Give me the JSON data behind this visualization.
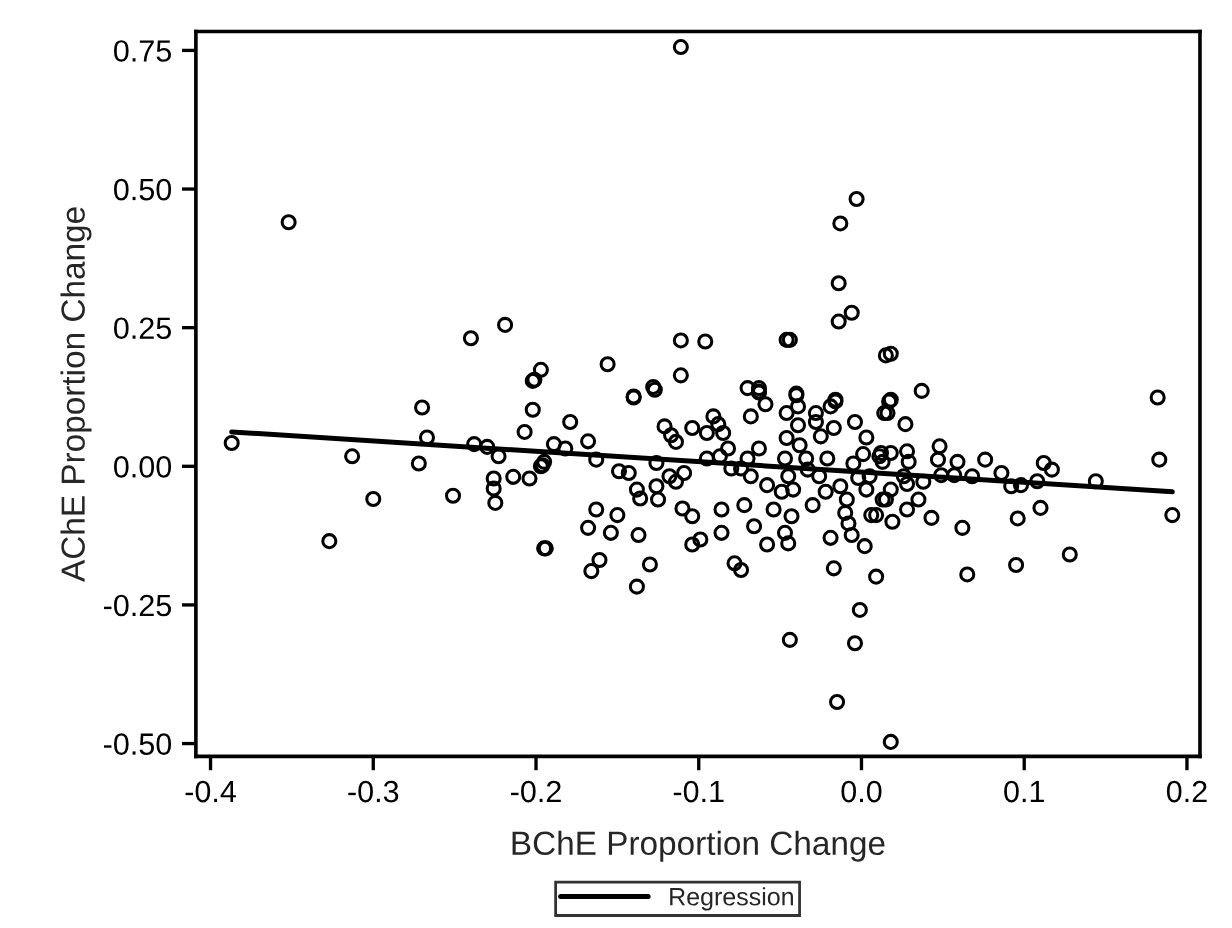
{
  "chart_data": {
    "type": "scatter",
    "xlabel": "BChE Proportion Change",
    "ylabel": "AChE Proportion Change",
    "xlim": [
      -0.409,
      0.208
    ],
    "ylim": [
      -0.523,
      0.784
    ],
    "xticks": [
      {
        "value": -0.4,
        "label": "-0.4"
      },
      {
        "value": -0.3,
        "label": "-0.3"
      },
      {
        "value": -0.2,
        "label": "-0.2"
      },
      {
        "value": -0.1,
        "label": "-0.1"
      },
      {
        "value": 0.0,
        "label": "0.0"
      },
      {
        "value": 0.1,
        "label": "0.1"
      },
      {
        "value": 0.2,
        "label": "0.2"
      }
    ],
    "yticks": [
      {
        "value": -0.5,
        "label": "-0.50"
      },
      {
        "value": -0.25,
        "label": "-0.25"
      },
      {
        "value": 0.0,
        "label": "0.00"
      },
      {
        "value": 0.25,
        "label": "0.25"
      },
      {
        "value": 0.5,
        "label": "0.50"
      },
      {
        "value": 0.75,
        "label": "0.75"
      }
    ],
    "grid": false,
    "legend": "bottom",
    "marker": "circle",
    "series": [
      {
        "color": "#000000",
        "x": [
          -0.352,
          -0.24,
          -0.219,
          -0.202,
          -0.197,
          -0.111,
          -0.003,
          -0.013,
          -0.014,
          -0.014,
          -0.006,
          -0.111,
          -0.096,
          -0.046,
          -0.044,
          -0.156,
          -0.201,
          -0.111,
          -0.128,
          -0.14,
          -0.07,
          -0.063,
          -0.063,
          -0.04,
          -0.016,
          0.015,
          0.018,
          0.037,
          0.018,
          0.182,
          -0.387,
          -0.27,
          -0.202,
          -0.207,
          -0.267,
          -0.238,
          -0.23,
          -0.223,
          -0.313,
          -0.272,
          -0.226,
          -0.214,
          -0.204,
          -0.226,
          -0.225,
          -0.3,
          -0.251,
          -0.327,
          -0.195,
          -0.196,
          -0.14,
          -0.127,
          -0.179,
          -0.189,
          -0.182,
          -0.195,
          -0.197,
          -0.168,
          -0.163,
          -0.149,
          -0.143,
          -0.126,
          -0.121,
          -0.117,
          -0.114,
          -0.104,
          -0.118,
          -0.114,
          -0.109,
          -0.126,
          -0.125,
          -0.138,
          -0.136,
          -0.163,
          -0.15,
          -0.168,
          -0.154,
          -0.137,
          -0.194,
          -0.161,
          -0.166,
          -0.13,
          -0.138,
          -0.11,
          -0.104,
          -0.104,
          -0.099,
          -0.095,
          -0.091,
          -0.088,
          -0.085,
          -0.095,
          -0.087,
          -0.082,
          -0.08,
          -0.074,
          -0.07,
          -0.068,
          -0.063,
          -0.068,
          -0.063,
          -0.059,
          -0.086,
          -0.086,
          -0.072,
          -0.066,
          -0.078,
          -0.074,
          -0.058,
          -0.054,
          -0.058,
          -0.047,
          -0.045,
          -0.043,
          -0.042,
          -0.045,
          -0.047,
          -0.046,
          -0.046,
          -0.04,
          -0.039,
          -0.039,
          -0.038,
          -0.034,
          -0.033,
          -0.028,
          -0.028,
          -0.025,
          -0.021,
          -0.019,
          -0.016,
          -0.026,
          -0.022,
          -0.03,
          -0.044,
          -0.017,
          -0.013,
          -0.009,
          -0.01,
          -0.008,
          -0.019,
          -0.006,
          0.002,
          -0.017,
          0.009,
          -0.001,
          -0.004,
          -0.015,
          -0.004,
          0.003,
          0.001,
          -0.005,
          -0.002,
          0.005,
          0.003,
          0.006,
          0.011,
          0.014,
          0.013,
          -0.049,
          0.017,
          0.016,
          0.027,
          0.183,
          0.191,
          0.012,
          0.018,
          0.013,
          0.028,
          0.029,
          0.048,
          0.047,
          0.059,
          0.076,
          0.026,
          0.028,
          0.038,
          0.049,
          0.057,
          0.068,
          0.086,
          0.092,
          0.098,
          0.108,
          0.112,
          0.117,
          0.144,
          0.018,
          0.015,
          0.035,
          0.009,
          0.019,
          0.028,
          0.043,
          0.062,
          0.096,
          0.11,
          0.128,
          0.095,
          0.065,
          0.018
        ],
        "values": [
          0.44,
          0.231,
          0.255,
          0.154,
          0.174,
          0.756,
          0.482,
          0.438,
          0.33,
          0.261,
          0.277,
          0.227,
          0.225,
          0.228,
          0.228,
          0.184,
          0.156,
          0.164,
          0.143,
          0.126,
          0.141,
          0.141,
          0.133,
          0.131,
          0.12,
          0.2,
          0.203,
          0.136,
          0.12,
          0.124,
          0.042,
          0.106,
          0.102,
          0.062,
          0.052,
          0.04,
          0.035,
          0.018,
          0.018,
          0.005,
          -0.022,
          -0.019,
          -0.022,
          -0.04,
          -0.066,
          -0.059,
          -0.053,
          -0.135,
          -0.148,
          0.002,
          0.124,
          0.138,
          0.08,
          0.04,
          0.032,
          0.008,
          0.0,
          0.045,
          0.012,
          -0.009,
          -0.012,
          0.006,
          0.072,
          0.056,
          0.044,
          0.069,
          -0.018,
          -0.028,
          -0.012,
          -0.036,
          -0.06,
          -0.042,
          -0.058,
          -0.078,
          -0.088,
          -0.111,
          -0.12,
          -0.124,
          -0.148,
          -0.169,
          -0.189,
          -0.177,
          -0.217,
          -0.076,
          -0.09,
          -0.141,
          -0.132,
          0.06,
          0.09,
          0.076,
          0.06,
          0.014,
          0.018,
          0.032,
          -0.004,
          -0.004,
          0.014,
          -0.018,
          0.032,
          0.09,
          0.135,
          0.112,
          -0.078,
          -0.12,
          -0.07,
          -0.108,
          -0.175,
          -0.187,
          -0.034,
          -0.078,
          -0.141,
          -0.12,
          -0.139,
          -0.09,
          -0.042,
          -0.018,
          0.014,
          0.051,
          0.096,
          0.128,
          0.108,
          0.074,
          0.038,
          0.014,
          -0.006,
          0.096,
          0.08,
          0.054,
          0.014,
          0.108,
          0.117,
          -0.018,
          -0.046,
          -0.07,
          -0.313,
          0.069,
          -0.036,
          -0.06,
          -0.084,
          -0.103,
          -0.129,
          -0.124,
          -0.144,
          -0.184,
          -0.199,
          -0.259,
          -0.319,
          -0.425,
          0.08,
          0.052,
          0.022,
          0.005,
          -0.021,
          -0.018,
          -0.042,
          -0.088,
          0.018,
          0.096,
          -0.06,
          -0.046,
          0.117,
          0.096,
          0.076,
          0.012,
          -0.088,
          0.024,
          0.024,
          0.008,
          0.027,
          0.008,
          0.036,
          0.012,
          0.008,
          0.012,
          -0.018,
          -0.032,
          -0.028,
          -0.016,
          -0.016,
          -0.018,
          -0.012,
          -0.036,
          -0.034,
          -0.027,
          0.006,
          -0.006,
          -0.027,
          -0.042,
          -0.06,
          -0.06,
          -0.088,
          -0.1,
          -0.078,
          -0.093,
          -0.111,
          -0.094,
          -0.075,
          -0.159,
          -0.178,
          -0.195,
          -0.497
        ]
      },
      {
        "type": "line",
        "name": "Regression",
        "color": "#000000",
        "marker": "none",
        "line_style": "solid",
        "x": [
          -0.387,
          0.191
        ],
        "values": [
          0.062,
          -0.046
        ]
      }
    ]
  }
}
